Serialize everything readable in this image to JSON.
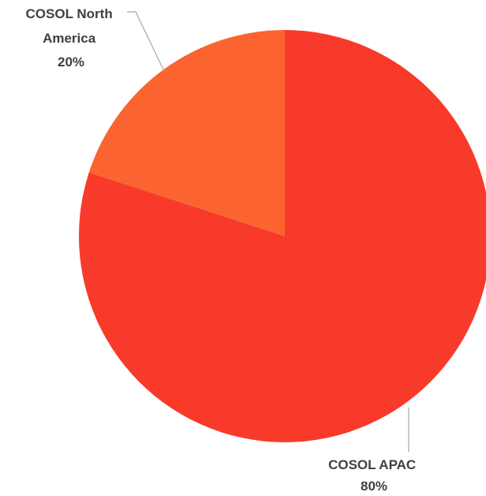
{
  "chart_data": {
    "type": "pie",
    "title": "",
    "slices": [
      {
        "name": "COSOL APAC",
        "value": 80,
        "label_lines": [
          "COSOL APAC",
          "80%"
        ],
        "color": "#f73a29"
      },
      {
        "name": "COSOL North America",
        "value": 20,
        "label_lines": [
          "COSOL North",
          "America",
          "20%"
        ],
        "color": "#fb6430"
      }
    ],
    "legend": "none",
    "data_labels": "outside-with-leader-lines"
  }
}
